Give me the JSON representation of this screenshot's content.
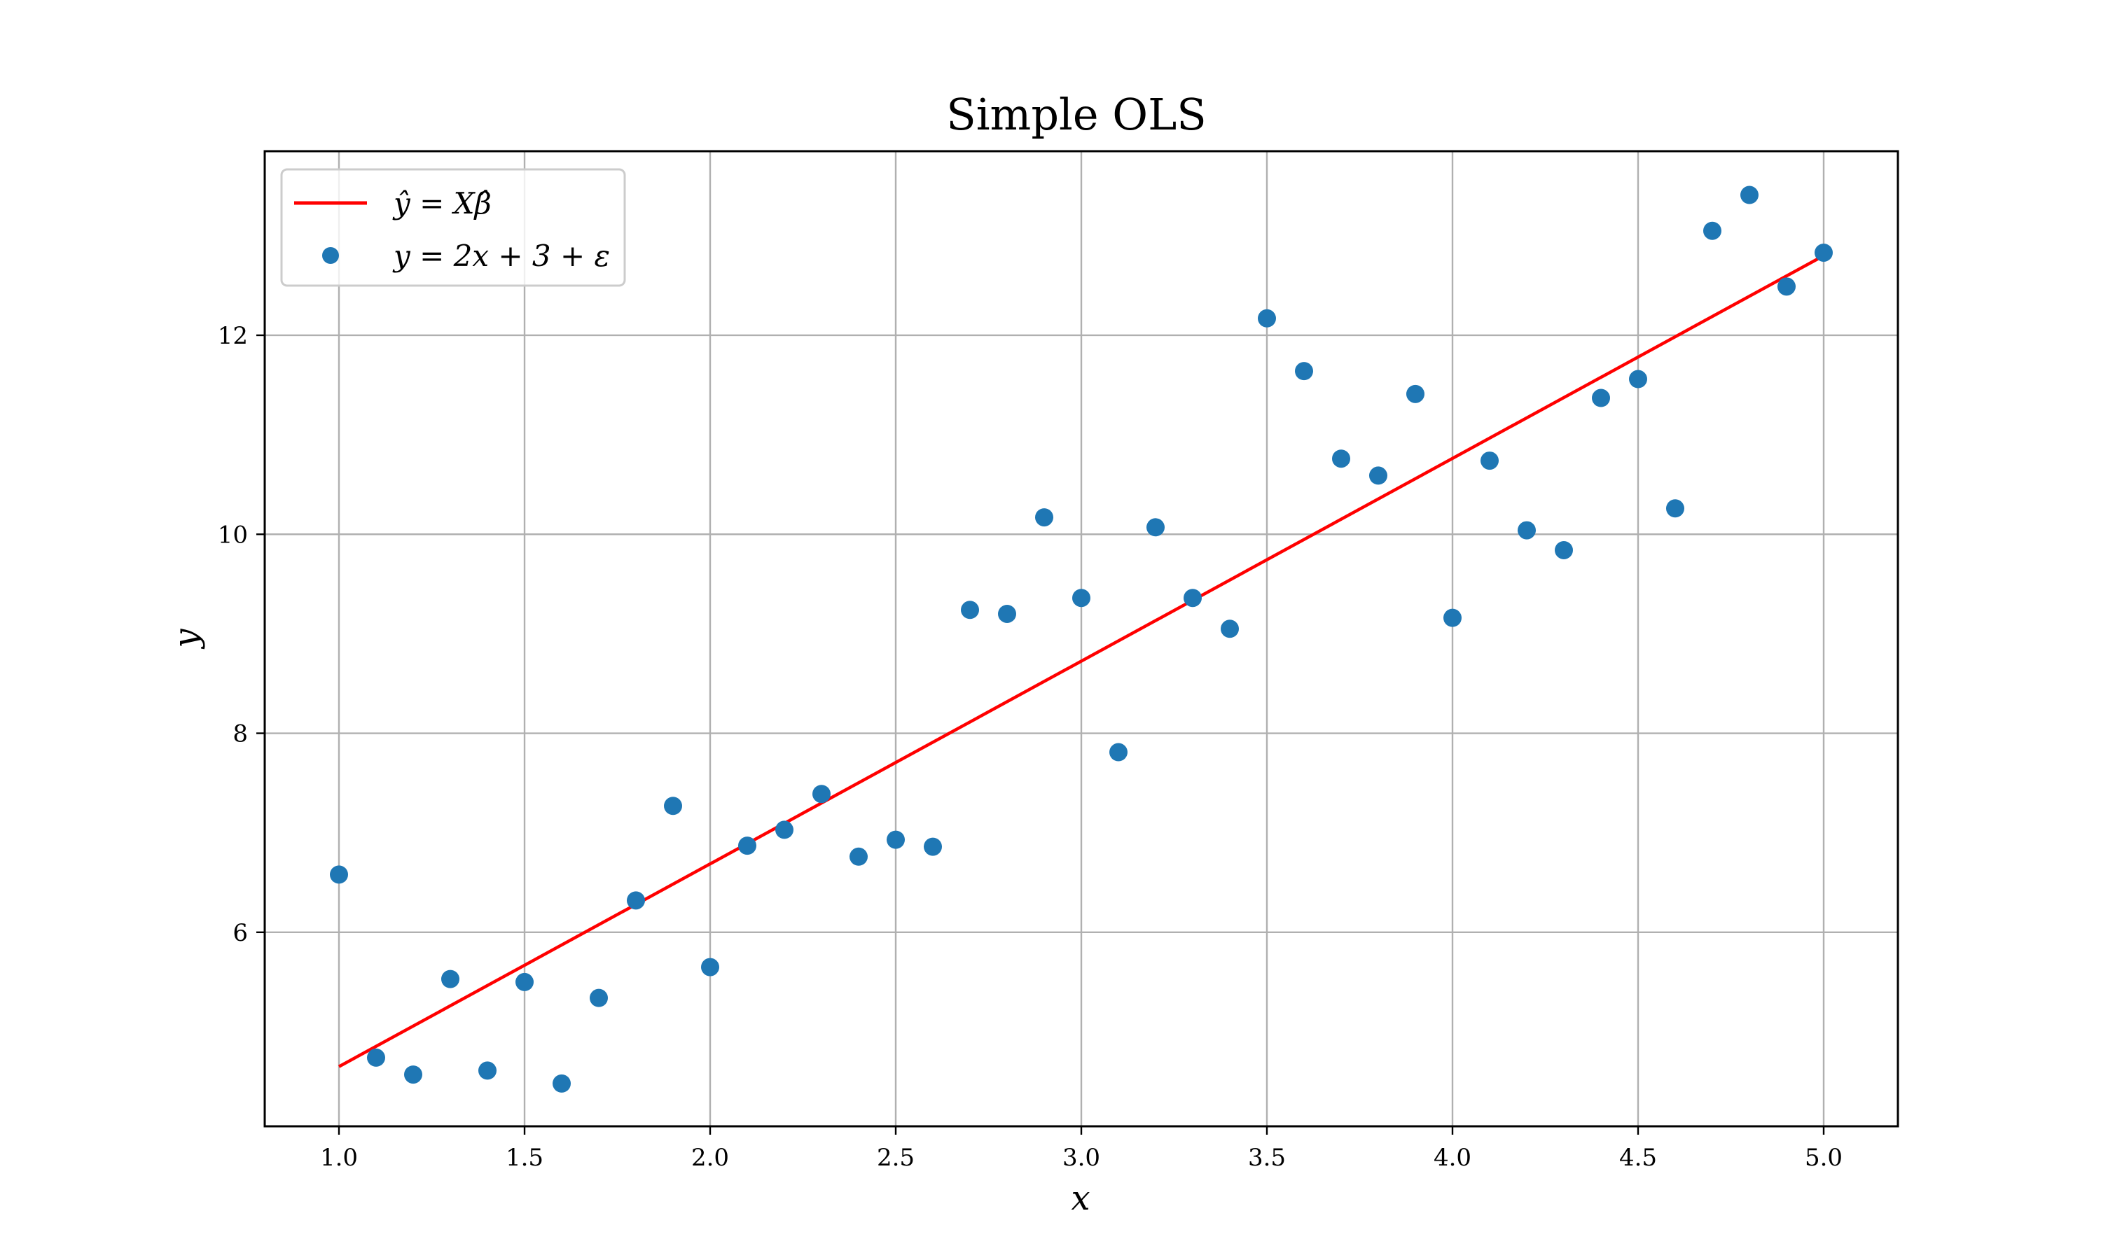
{
  "chart_data": {
    "type": "scatter",
    "title": "Simple OLS",
    "xlabel": "x",
    "ylabel": "y",
    "xlim": [
      0.8,
      5.2
    ],
    "ylim": [
      4.05,
      13.85
    ],
    "xticks": [
      1.0,
      1.5,
      2.0,
      2.5,
      3.0,
      3.5,
      4.0,
      4.5,
      5.0
    ],
    "xtick_labels": [
      "1.0",
      "1.5",
      "2.0",
      "2.5",
      "3.0",
      "3.5",
      "4.0",
      "4.5",
      "5.0"
    ],
    "yticks": [
      6,
      8,
      10,
      12
    ],
    "ytick_labels": [
      "6",
      "8",
      "10",
      "12"
    ],
    "grid": true,
    "legend_position": "top-left",
    "series": [
      {
        "name": "ŷ = Xβ̂",
        "kind": "line",
        "color": "#ff0000",
        "x": [
          1.0,
          5.0
        ],
        "y": [
          4.65,
          12.8
        ]
      },
      {
        "name": "y = 2x + 3 + ε",
        "kind": "scatter",
        "color": "#1f77b4",
        "x": [
          1.0,
          1.1,
          1.2,
          1.3,
          1.4,
          1.5,
          1.6,
          1.7,
          1.8,
          1.9,
          2.0,
          2.1,
          2.2,
          2.3,
          2.4,
          2.5,
          2.6,
          2.7,
          2.8,
          2.9,
          3.0,
          3.1,
          3.2,
          3.3,
          3.4,
          3.5,
          3.6,
          3.7,
          3.8,
          3.9,
          4.0,
          4.1,
          4.2,
          4.3,
          4.4,
          4.5,
          4.6,
          4.7,
          4.8,
          4.9,
          5.0
        ],
        "y": [
          6.58,
          4.74,
          4.57,
          5.53,
          4.61,
          5.5,
          4.48,
          5.34,
          6.32,
          7.27,
          5.65,
          6.87,
          7.03,
          7.39,
          6.76,
          6.93,
          6.86,
          9.24,
          9.2,
          10.17,
          9.36,
          7.81,
          10.07,
          9.36,
          9.05,
          12.17,
          11.64,
          10.76,
          10.59,
          11.41,
          9.16,
          10.74,
          10.04,
          9.84,
          11.37,
          11.56,
          10.26,
          13.05,
          13.41,
          12.49,
          12.83
        ]
      }
    ]
  }
}
